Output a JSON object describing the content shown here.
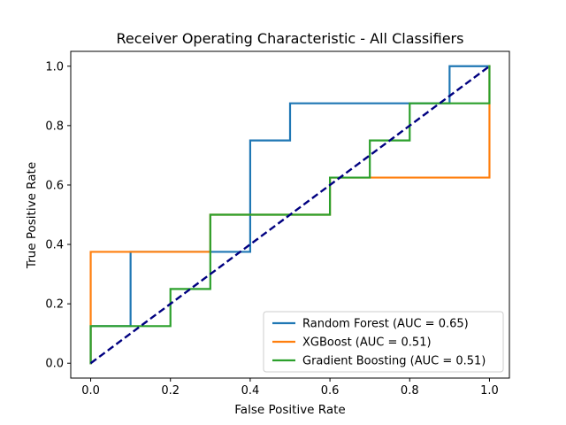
{
  "chart_data": {
    "type": "line",
    "title": "Receiver Operating Characteristic - All Classifiers",
    "xlabel": "False Positive Rate",
    "ylabel": "True Positive Rate",
    "xlim": [
      -0.05,
      1.05
    ],
    "ylim": [
      -0.05,
      1.05
    ],
    "xticks": [
      "0.0",
      "0.2",
      "0.4",
      "0.6",
      "0.8",
      "1.0"
    ],
    "yticks": [
      "0.0",
      "0.2",
      "0.4",
      "0.6",
      "0.8",
      "1.0"
    ],
    "grid": false,
    "legend_position": "lower-right",
    "series": [
      {
        "name": "Random Forest (AUC = 0.65)",
        "color": "#1f77b4",
        "x": [
          0.0,
          0.0,
          0.1,
          0.1,
          0.4,
          0.4,
          0.5,
          0.5,
          0.9,
          0.9,
          1.0
        ],
        "y": [
          0.0,
          0.125,
          0.125,
          0.375,
          0.375,
          0.75,
          0.75,
          0.875,
          0.875,
          1.0,
          1.0
        ]
      },
      {
        "name": "XGBoost (AUC = 0.51)",
        "color": "#ff7f0e",
        "x": [
          0.0,
          0.0,
          0.3,
          0.3,
          0.6,
          0.6,
          1.0,
          1.0
        ],
        "y": [
          0.0,
          0.375,
          0.375,
          0.5,
          0.5,
          0.625,
          0.625,
          1.0
        ]
      },
      {
        "name": "Gradient Boosting (AUC = 0.51)",
        "color": "#2ca02c",
        "x": [
          0.0,
          0.0,
          0.2,
          0.2,
          0.3,
          0.3,
          0.6,
          0.6,
          0.7,
          0.7,
          0.8,
          0.8,
          1.0,
          1.0
        ],
        "y": [
          0.0,
          0.125,
          0.125,
          0.25,
          0.25,
          0.5,
          0.5,
          0.625,
          0.625,
          0.75,
          0.75,
          0.875,
          0.875,
          1.0
        ]
      }
    ],
    "reference_line": {
      "color": "#000080",
      "style": "dashed",
      "x": [
        0,
        1
      ],
      "y": [
        0,
        1
      ]
    }
  }
}
